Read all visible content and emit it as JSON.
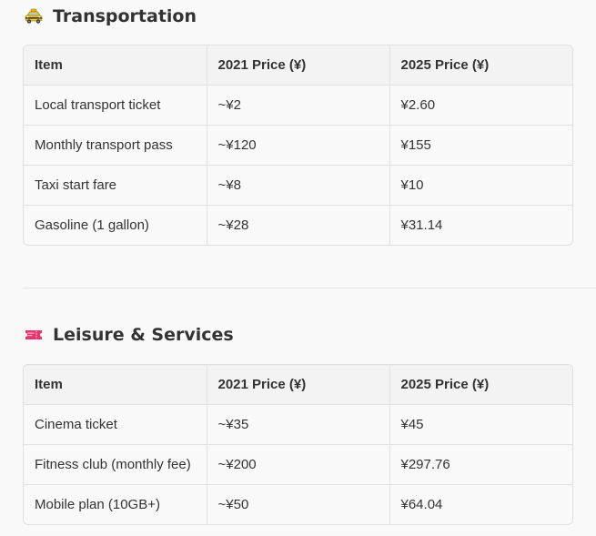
{
  "transportation": {
    "title": "Transportation",
    "icon": "taxi-icon",
    "headers": [
      "Item",
      "2021 Price (¥)",
      "2025 Price (¥)"
    ],
    "rows": [
      [
        "Local transport ticket",
        "~¥2",
        "¥2.60"
      ],
      [
        "Monthly transport pass",
        "~¥120",
        "¥155"
      ],
      [
        "Taxi start fare",
        "~¥8",
        "¥10"
      ],
      [
        "Gasoline (1 gallon)",
        "~¥28",
        "¥31.14"
      ]
    ]
  },
  "leisure": {
    "title": "Leisure & Services",
    "icon": "ticket-icon",
    "headers": [
      "Item",
      "2021 Price (¥)",
      "2025 Price (¥)"
    ],
    "rows": [
      [
        "Cinema ticket",
        "~¥35",
        "¥45"
      ],
      [
        "Fitness club (monthly fee)",
        "~¥200",
        "¥297.76"
      ],
      [
        "Mobile plan (10GB+)",
        "~¥50",
        "¥64.04"
      ]
    ]
  },
  "colors": {
    "text": "#333333",
    "border": "#e0e0e0",
    "header_bg": "#f3f3f3",
    "page_bg": "#f9f9f9",
    "taxi_yellow": "#f4b400",
    "ticket_pink": "#e8336d"
  }
}
